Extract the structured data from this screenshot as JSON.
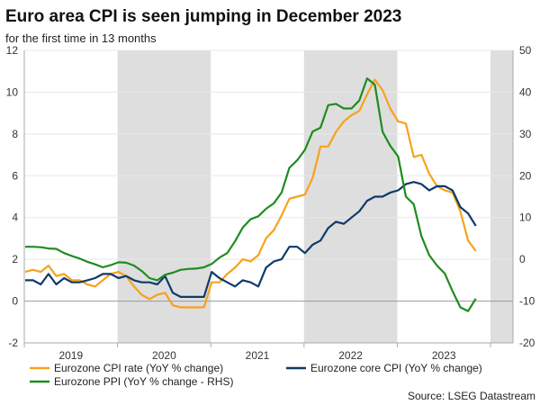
{
  "chart_data": {
    "type": "line",
    "title": "Euro area CPI is seen jumping in December 2023",
    "subtitle": "for the first time in 13 months",
    "source": "Source: LSEG Datastream",
    "x_start": "2019-01",
    "frequency": "monthly",
    "year_labels": [
      "2019",
      "2020",
      "2021",
      "2022",
      "2023"
    ],
    "shaded_years": [
      "2020",
      "2022",
      "2024"
    ],
    "ylim_left": [
      -2,
      12
    ],
    "yticks_left": [
      -2,
      0,
      2,
      4,
      6,
      8,
      10,
      12
    ],
    "ylim_right": [
      -20,
      50
    ],
    "yticks_right": [
      -20,
      -10,
      0,
      10,
      20,
      30,
      40,
      50
    ],
    "series": [
      {
        "name": "Eurozone CPI rate (YoY % change)",
        "axis": "left",
        "color": "#F7A21B",
        "values": [
          1.4,
          1.5,
          1.4,
          1.7,
          1.2,
          1.3,
          1.0,
          1.0,
          0.8,
          0.7,
          1.0,
          1.3,
          1.4,
          1.2,
          0.7,
          0.3,
          0.1,
          0.3,
          0.4,
          -0.2,
          -0.3,
          -0.3,
          -0.3,
          -0.3,
          0.9,
          0.9,
          1.3,
          1.6,
          2.0,
          1.9,
          2.2,
          3.0,
          3.4,
          4.1,
          4.9,
          5.0,
          5.1,
          5.9,
          7.4,
          7.4,
          8.1,
          8.6,
          8.9,
          9.1,
          9.9,
          10.6,
          10.1,
          9.2,
          8.6,
          8.5,
          6.9,
          7.0,
          6.1,
          5.5,
          5.3,
          5.2,
          4.3,
          2.9,
          2.4
        ]
      },
      {
        "name": "Eurozone core CPI (YoY % change)",
        "axis": "left",
        "color": "#0E3A6B",
        "values": [
          1.0,
          1.0,
          0.8,
          1.3,
          0.8,
          1.1,
          0.9,
          0.9,
          1.0,
          1.1,
          1.3,
          1.3,
          1.1,
          1.2,
          1.0,
          0.9,
          0.9,
          0.8,
          1.2,
          0.4,
          0.2,
          0.2,
          0.2,
          0.2,
          1.4,
          1.1,
          0.9,
          0.7,
          1.0,
          0.9,
          0.7,
          1.6,
          1.9,
          2.0,
          2.6,
          2.6,
          2.3,
          2.7,
          2.9,
          3.5,
          3.8,
          3.7,
          4.0,
          4.3,
          4.8,
          5.0,
          5.0,
          5.2,
          5.3,
          5.6,
          5.7,
          5.6,
          5.3,
          5.5,
          5.5,
          5.3,
          4.5,
          4.2,
          3.6
        ]
      },
      {
        "name": "Eurozone PPI (YoY % change - RHS)",
        "axis": "right",
        "color": "#1E8C1E",
        "values": [
          3.0,
          3.0,
          2.9,
          2.6,
          2.5,
          1.5,
          0.8,
          0.2,
          -0.6,
          -1.2,
          -1.9,
          -1.4,
          -0.7,
          -0.8,
          -1.5,
          -2.8,
          -4.5,
          -5.0,
          -3.7,
          -3.2,
          -2.5,
          -2.3,
          -2.2,
          -1.9,
          -1.1,
          0.4,
          1.5,
          4.3,
          7.6,
          9.6,
          10.3,
          12.1,
          13.4,
          16.0,
          21.9,
          23.7,
          26.2,
          30.6,
          31.5,
          36.9,
          37.2,
          36.1,
          36.1,
          38.0,
          43.3,
          41.8,
          30.5,
          27.1,
          24.6,
          15.0,
          13.2,
          5.5,
          1.0,
          -1.5,
          -3.4,
          -7.6,
          -11.5,
          -12.4,
          -9.4
        ]
      }
    ]
  }
}
